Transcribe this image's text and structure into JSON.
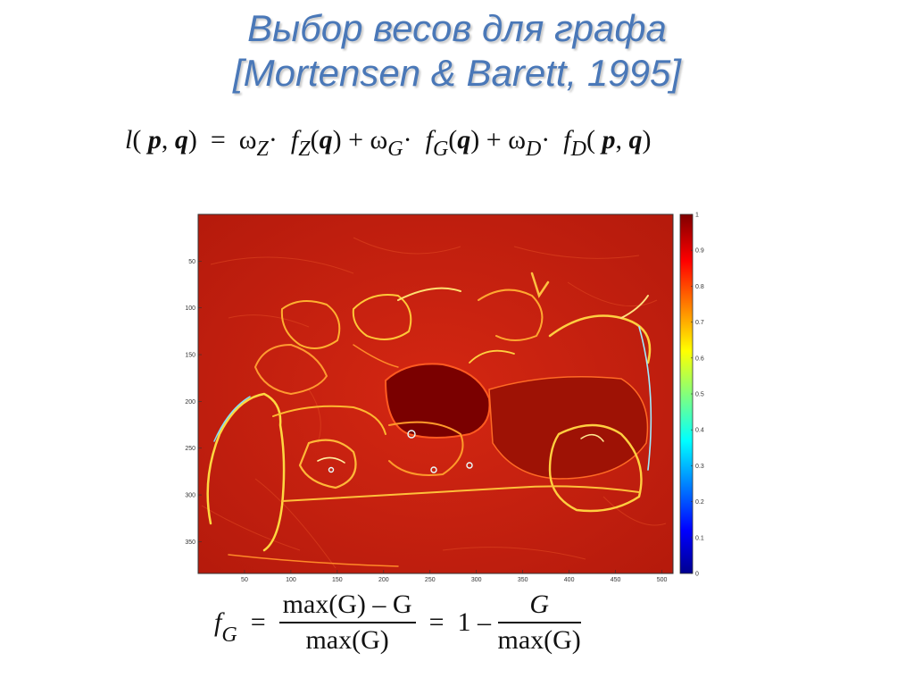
{
  "slide": {
    "title_line1": "Выбор весов для графа",
    "title_line2": "[Mortensen & Barett, 1995]"
  },
  "equation_top": {
    "l": "l",
    "p": "p",
    "q": "q",
    "eq": "=",
    "omega": "ω",
    "plus": "+",
    "dot": "·",
    "f": "f",
    "sub_Z": "Z",
    "sub_G": "G",
    "sub_D": "D"
  },
  "equation_bottom": {
    "f": "f",
    "sub": "G",
    "eq": "=",
    "frac1_num": "max(G) – G",
    "frac1_den": "max(G)",
    "one_minus": "1 –",
    "frac2_num": "G",
    "frac2_den": "max(G)"
  },
  "colors": {
    "title": "#4a78b8",
    "map_background": "#c8200f",
    "edge_bright": "#ffcf30"
  },
  "chart_data": {
    "type": "heatmap",
    "title": "",
    "xlabel": "",
    "ylabel": "",
    "y_ticks": [
      "50",
      "100",
      "150",
      "200",
      "250",
      "300",
      "350"
    ],
    "x_ticks": [
      "50",
      "100",
      "150",
      "200",
      "250",
      "300",
      "350",
      "400",
      "450",
      "500"
    ],
    "colorbar_ticks": [
      "0",
      "0.1",
      "0.2",
      "0.3",
      "0.4",
      "0.5",
      "0.6",
      "0.7",
      "0.8",
      "0.9",
      "1"
    ],
    "colorbar_range": [
      0,
      1
    ],
    "x_range": [
      0,
      512
    ],
    "y_range": [
      0,
      384
    ]
  }
}
